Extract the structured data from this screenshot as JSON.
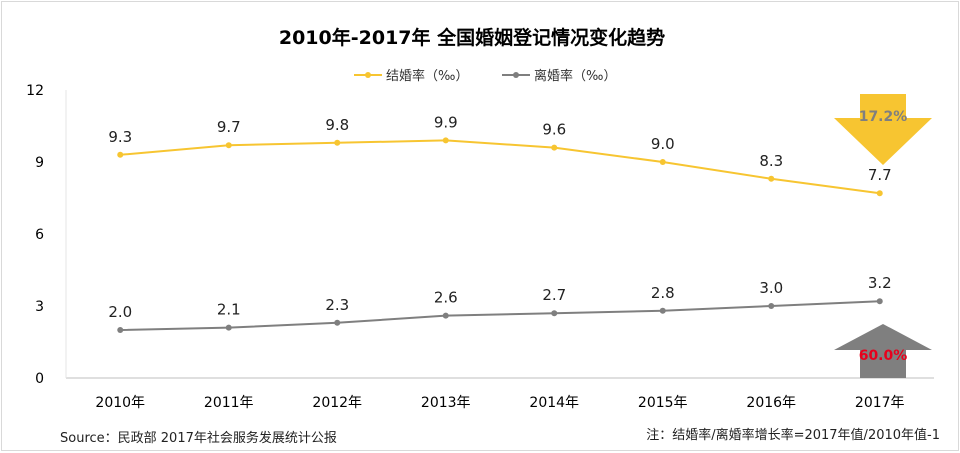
{
  "chart_data": {
    "type": "line",
    "title": "2010年-2017年 全国婚姻登记情况变化趋势",
    "categories": [
      "2010年",
      "2011年",
      "2012年",
      "2013年",
      "2014年",
      "2015年",
      "2016年",
      "2017年"
    ],
    "y_ticks": [
      "0",
      "3",
      "6",
      "9",
      "12"
    ],
    "ylim": [
      0,
      12
    ],
    "grid": false,
    "legend_position": "top-center",
    "series": [
      {
        "name": "结婚率（‰）",
        "values": [
          9.3,
          9.7,
          9.8,
          9.9,
          9.6,
          9.0,
          8.3,
          7.7
        ],
        "labels": [
          "9.3",
          "9.7",
          "9.8",
          "9.9",
          "9.6",
          "9.0",
          "8.3",
          "7.7"
        ],
        "color": "#f7c531"
      },
      {
        "name": "离婚率（‰）",
        "values": [
          2.0,
          2.1,
          2.3,
          2.6,
          2.7,
          2.8,
          3.0,
          3.2
        ],
        "labels": [
          "2.0",
          "2.1",
          "2.3",
          "2.6",
          "2.7",
          "2.8",
          "3.0",
          "3.2"
        ],
        "color": "#7f7f7f"
      }
    ],
    "annotations": [
      {
        "text": "17.2%",
        "direction": "down",
        "arrow_color": "#f7c531",
        "text_color": "#7f7f7f"
      },
      {
        "text": "60.0%",
        "direction": "up",
        "arrow_color": "#7f7f7f",
        "text_color": "#e8001c"
      }
    ],
    "source": "Source：民政部 2017年社会服务发展统计公报",
    "note": "注：结婚率/离婚率增长率=2017年值/2010年值-1"
  }
}
